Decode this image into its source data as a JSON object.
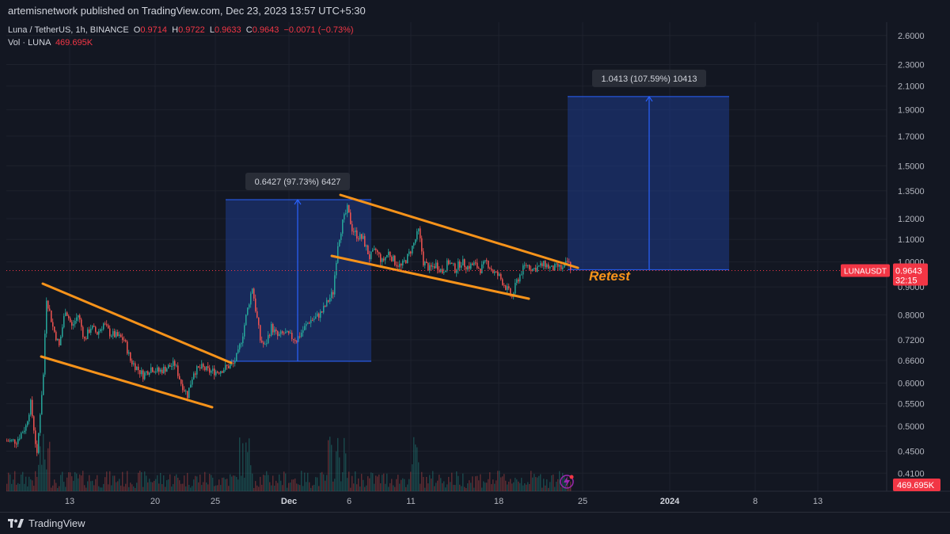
{
  "header": {
    "publisher": "artemisnetwork published on TradingView.com, Dec 23, 2023 13:57 UTC+5:30"
  },
  "legend": {
    "symbol": "Luna / TetherUS, 1h, BINANCE",
    "o_label": "O",
    "o": "0.9714",
    "h_label": "H",
    "h": "0.9722",
    "l_label": "L",
    "l": "0.9633",
    "c_label": "C",
    "c": "0.9643",
    "change": "−0.0071 (−0.73%)",
    "vol_label": "Vol · LUNA",
    "vol": "469.695K"
  },
  "footer": {
    "brand": "TradingView"
  },
  "colors": {
    "background": "#131722",
    "up": "#26a69a",
    "down": "#ef5350",
    "trendline": "#f7931a",
    "measure_fill": "#1e3a8a",
    "measure_line": "#2962ff",
    "price_tag": "#f23645"
  },
  "chart_data": {
    "type": "candlestick",
    "symbol": "LUNAUSDT",
    "interval": "1h",
    "yaxis_scale": "log",
    "y_ticks": [
      "2.6000",
      "2.3000",
      "2.1000",
      "1.9000",
      "1.7000",
      "1.5000",
      "1.3500",
      "1.2000",
      "1.1000",
      "1.0000",
      "0.9000",
      "0.8000",
      "0.7200",
      "0.6600",
      "0.6000",
      "0.5500",
      "0.5000",
      "0.4500",
      "0.4100"
    ],
    "x_ticks": [
      "13",
      "20",
      "25",
      "Dec",
      "6",
      "11",
      "18",
      "25",
      "2024",
      "8",
      "13"
    ],
    "ylim": [
      0.38,
      2.75
    ],
    "last_price": "0.9643",
    "countdown": "32:15",
    "volume_label": "469.695K",
    "annotations": [
      {
        "type": "measure",
        "label": "0.6427 (97.73%) 6427",
        "from_price": 0.6576,
        "to_price": 1.3003
      },
      {
        "type": "measure",
        "label": "1.0413 (107.59%) 10413",
        "from_price": 0.9678,
        "to_price": 2.0091
      },
      {
        "type": "text",
        "label": "Retest"
      }
    ],
    "path_anchors": [
      [
        0,
        0.47
      ],
      [
        12,
        0.47
      ],
      [
        24,
        0.5
      ],
      [
        30,
        0.55
      ],
      [
        38,
        0.44
      ],
      [
        46,
        0.62
      ],
      [
        50,
        0.86
      ],
      [
        58,
        0.76
      ],
      [
        66,
        0.7
      ],
      [
        74,
        0.82
      ],
      [
        82,
        0.76
      ],
      [
        90,
        0.8
      ],
      [
        98,
        0.72
      ],
      [
        106,
        0.76
      ],
      [
        114,
        0.74
      ],
      [
        122,
        0.77
      ],
      [
        130,
        0.74
      ],
      [
        140,
        0.73
      ],
      [
        148,
        0.72
      ],
      [
        156,
        0.66
      ],
      [
        164,
        0.64
      ],
      [
        172,
        0.62
      ],
      [
        182,
        0.64
      ],
      [
        192,
        0.63
      ],
      [
        202,
        0.64
      ],
      [
        212,
        0.65
      ],
      [
        220,
        0.6
      ],
      [
        228,
        0.57
      ],
      [
        236,
        0.63
      ],
      [
        246,
        0.64
      ],
      [
        256,
        0.63
      ],
      [
        266,
        0.63
      ],
      [
        276,
        0.64
      ],
      [
        286,
        0.65
      ],
      [
        292,
        0.68
      ],
      [
        298,
        0.74
      ],
      [
        304,
        0.82
      ],
      [
        310,
        0.9
      ],
      [
        314,
        0.82
      ],
      [
        320,
        0.72
      ],
      [
        326,
        0.7
      ],
      [
        334,
        0.76
      ],
      [
        342,
        0.73
      ],
      [
        350,
        0.74
      ],
      [
        358,
        0.73
      ],
      [
        366,
        0.72
      ],
      [
        374,
        0.75
      ],
      [
        382,
        0.78
      ],
      [
        390,
        0.79
      ],
      [
        398,
        0.81
      ],
      [
        406,
        0.85
      ],
      [
        412,
        0.88
      ],
      [
        418,
        1.08
      ],
      [
        424,
        1.18
      ],
      [
        430,
        1.25
      ],
      [
        436,
        1.15
      ],
      [
        442,
        1.12
      ],
      [
        450,
        1.1
      ],
      [
        458,
        1.02
      ],
      [
        466,
        1.05
      ],
      [
        474,
        1.0
      ],
      [
        482,
        1.04
      ],
      [
        490,
        1.0
      ],
      [
        498,
        0.98
      ],
      [
        506,
        1.02
      ],
      [
        514,
        1.08
      ],
      [
        520,
        1.14
      ],
      [
        526,
        1.0
      ],
      [
        534,
        0.97
      ],
      [
        542,
        0.99
      ],
      [
        550,
        0.96
      ],
      [
        558,
        1.0
      ],
      [
        566,
        0.97
      ],
      [
        574,
        1.0
      ],
      [
        582,
        0.98
      ],
      [
        590,
        0.99
      ],
      [
        598,
        0.97
      ],
      [
        606,
        1.0
      ],
      [
        614,
        0.96
      ],
      [
        622,
        0.94
      ],
      [
        630,
        0.9
      ],
      [
        638,
        0.86
      ],
      [
        644,
        0.92
      ],
      [
        650,
        0.96
      ],
      [
        656,
        0.99
      ],
      [
        664,
        0.97
      ],
      [
        672,
        0.98
      ],
      [
        680,
        0.99
      ],
      [
        688,
        0.97
      ],
      [
        696,
        0.98
      ],
      [
        702,
        0.97
      ],
      [
        708,
        1.0
      ],
      [
        714,
        0.97
      ]
    ]
  }
}
